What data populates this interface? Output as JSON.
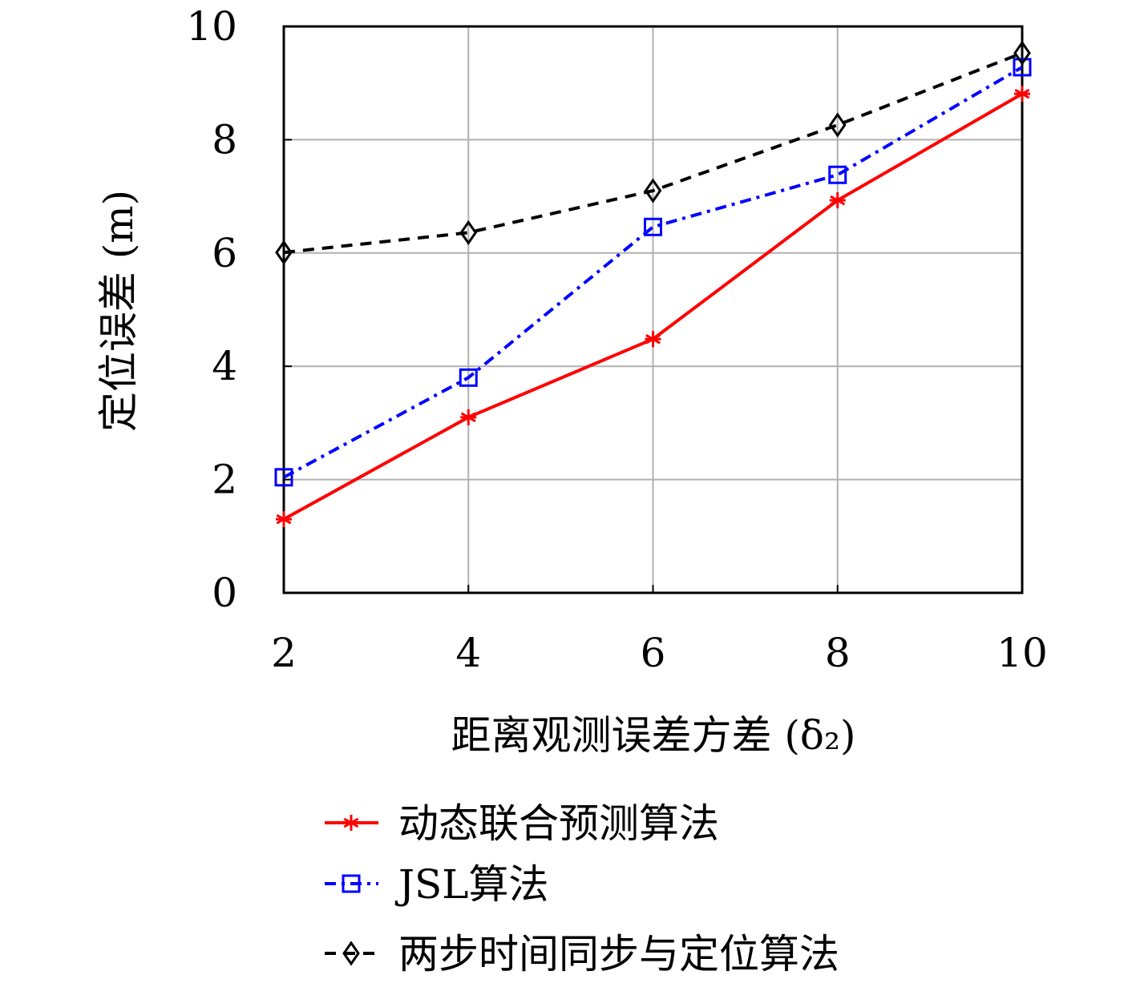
{
  "chart_data": {
    "type": "line",
    "title": "",
    "xlabel": "距离观测误差方差 (δ₂)",
    "ylabel": "定位误差 (m)",
    "x": [
      2,
      4,
      6,
      8,
      10
    ],
    "xlim": [
      2,
      10
    ],
    "ylim": [
      0,
      10
    ],
    "xticks": [
      2,
      4,
      6,
      8,
      10
    ],
    "yticks": [
      0,
      2,
      4,
      6,
      8,
      10
    ],
    "grid": true,
    "legend_position": "bottom",
    "series": [
      {
        "name": "动态联合预测算法",
        "color": "#ff0000",
        "marker": "asterisk",
        "linestyle": "solid",
        "values": [
          1.3,
          3.1,
          4.48,
          6.93,
          8.81
        ]
      },
      {
        "name": "JSL算法",
        "color": "#0000ff",
        "marker": "square",
        "linestyle": "dashdot",
        "values": [
          2.04,
          3.8,
          6.46,
          7.38,
          9.28
        ]
      },
      {
        "name": "两步时间同步与定位算法",
        "color": "#000000",
        "marker": "diamond",
        "linestyle": "dashed",
        "values": [
          6.01,
          6.36,
          7.1,
          8.26,
          9.53
        ]
      }
    ]
  }
}
